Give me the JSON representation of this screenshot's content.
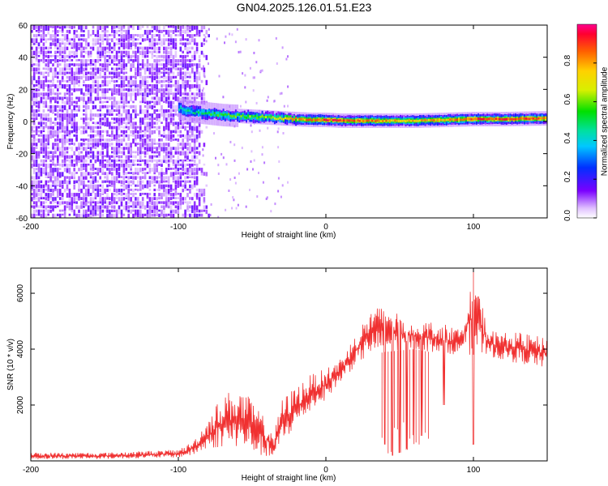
{
  "title": "GN04.2025.126.01.51.E23",
  "chart_data": [
    {
      "type": "heatmap",
      "xlabel": "Height of straight line (km)",
      "ylabel": "Frequency (Hz)",
      "xlim": [
        -200,
        150
      ],
      "ylim": [
        -60,
        60
      ],
      "x_ticks": [
        -200,
        -100,
        0,
        100
      ],
      "x_tick_labels": [
        "-200",
        "-100",
        "0",
        "100"
      ],
      "y_ticks": [
        -60,
        -40,
        -20,
        0,
        20,
        40,
        60
      ],
      "y_tick_labels": [
        "-60",
        "-40",
        "-20",
        "0",
        "20",
        "40",
        "60"
      ],
      "colorbar": {
        "label": "Normalized spectral amplitude",
        "range": [
          0,
          1
        ],
        "ticks": [
          0,
          0.2,
          0.4,
          0.6,
          0.8
        ],
        "tick_labels": [
          "0.0",
          "0.2",
          "0.4",
          "0.6",
          "0.8"
        ]
      },
      "ridge": {
        "x": [
          -100,
          -90,
          -80,
          -70,
          -60,
          -50,
          -40,
          -30,
          -20,
          -10,
          0,
          10,
          20,
          40,
          60,
          80,
          100,
          120,
          150
        ],
        "frequency": [
          8,
          6,
          5,
          4,
          3.5,
          3,
          2.5,
          2,
          1.5,
          1,
          1,
          0.5,
          0.5,
          0.5,
          0.5,
          1,
          1.5,
          1.5,
          2
        ],
        "amplitude": [
          0.4,
          0.45,
          0.5,
          0.55,
          0.6,
          0.6,
          0.65,
          0.7,
          0.8,
          0.85,
          0.9,
          0.9,
          0.85,
          0.8,
          0.75,
          0.8,
          0.9,
          0.9,
          0.85
        ]
      },
      "noise_region_x": [
        -200,
        -85
      ]
    },
    {
      "type": "line",
      "xlabel": "Height of straight line (km)",
      "ylabel": "SNR (10 * v/v)",
      "xlim": [
        -200,
        150
      ],
      "ylim": [
        0,
        6900
      ],
      "x_ticks": [
        -200,
        -100,
        0,
        100
      ],
      "x_tick_labels": [
        "-200",
        "-100",
        "0",
        "100"
      ],
      "y_ticks": [
        2000,
        4000,
        6000
      ],
      "y_tick_labels": [
        "2000",
        "4000",
        "6000"
      ],
      "series_color": "#f03030",
      "envelope": {
        "x": [
          -200,
          -150,
          -100,
          -90,
          -80,
          -70,
          -60,
          -50,
          -40,
          -35,
          -30,
          -20,
          -10,
          0,
          10,
          20,
          30,
          40,
          50,
          60,
          70,
          80,
          90,
          100,
          110,
          120,
          130,
          140,
          150
        ],
        "low": [
          60,
          70,
          120,
          200,
          400,
          500,
          500,
          300,
          100,
          50,
          600,
          1200,
          1800,
          2200,
          2800,
          3400,
          3800,
          3900,
          3950,
          4000,
          3900,
          3850,
          3800,
          3800,
          3750,
          3600,
          3500,
          3400,
          3300
        ],
        "high": [
          300,
          300,
          400,
          700,
          1500,
          2400,
          2600,
          2200,
          1400,
          1000,
          2200,
          2700,
          3100,
          3300,
          3700,
          4500,
          5400,
          5600,
          5200,
          5100,
          5000,
          4900,
          4700,
          6900,
          4700,
          4600,
          4600,
          4500,
          4400
        ]
      },
      "dips": [
        {
          "x": 40,
          "value": 600
        },
        {
          "x": 45,
          "value": 200
        },
        {
          "x": 50,
          "value": 300
        },
        {
          "x": 55,
          "value": 400
        },
        {
          "x": 60,
          "value": 600
        },
        {
          "x": 65,
          "value": 900
        },
        {
          "x": 80,
          "value": 2000
        },
        {
          "x": 100,
          "value": 600
        }
      ]
    }
  ]
}
